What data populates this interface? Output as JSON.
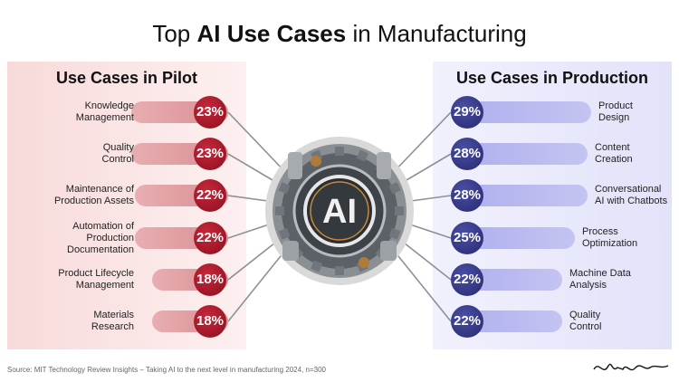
{
  "title": {
    "prefix": "Top ",
    "bold": "AI Use Cases",
    "suffix": " in Manufacturing"
  },
  "center_label": "AI",
  "source": "Source: MIT Technology Review Insights – Taking AI to the next level in manufacturing 2024, n=300",
  "signature": "Jeff Winter",
  "colors": {
    "pilot": "#a8192b",
    "production": "#363a8c"
  },
  "chart_data": [
    {
      "type": "bar",
      "title": "Use Cases in Pilot",
      "categories": [
        "Knowledge Management",
        "Quality Control",
        "Maintenance of Production Assets",
        "Automation of Production Documentation",
        "Product Lifecycle Management",
        "Materials Research"
      ],
      "category_lines": [
        [
          "Knowledge",
          "Management"
        ],
        [
          "Quality",
          "Control"
        ],
        [
          "Maintenance of",
          "Production Assets"
        ],
        [
          "Automation of",
          "Production",
          "Documentation"
        ],
        [
          "Product Lifecycle",
          "Management"
        ],
        [
          "Materials",
          "Research"
        ]
      ],
      "values": [
        23,
        23,
        22,
        22,
        18,
        18
      ],
      "unit": "%"
    },
    {
      "type": "bar",
      "title": "Use Cases in Production",
      "categories": [
        "Product Design",
        "Content Creation",
        "Conversational AI with Chatbots",
        "Process Optimization",
        "Machine Data Analysis",
        "Quality Control"
      ],
      "category_lines": [
        [
          "Product",
          "Design"
        ],
        [
          "Content",
          "Creation"
        ],
        [
          "Conversational",
          "AI with Chatbots"
        ],
        [
          "Process",
          "Optimization"
        ],
        [
          "Machine Data",
          "Analysis"
        ],
        [
          "Quality",
          "Control"
        ]
      ],
      "values": [
        29,
        28,
        28,
        25,
        22,
        22
      ],
      "unit": "%"
    }
  ]
}
